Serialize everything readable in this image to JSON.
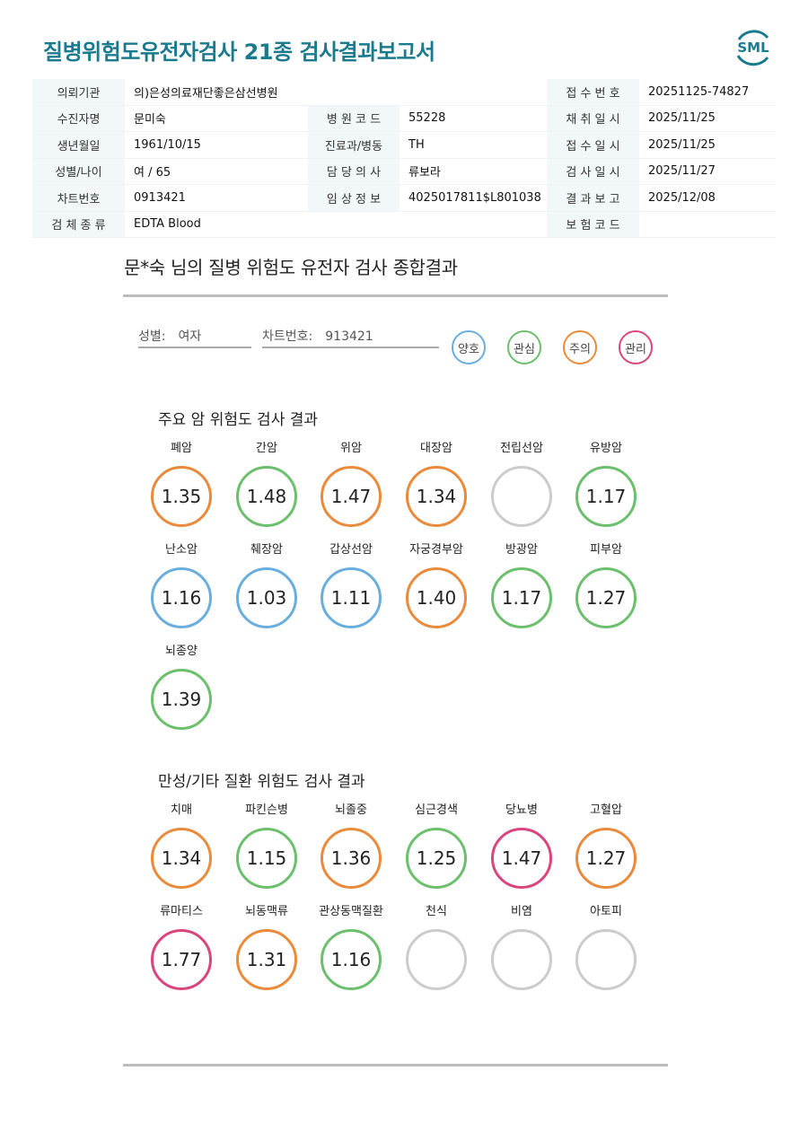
{
  "title": "질병위험도유전자검사 21종 검사결과보고서",
  "logo_text": "SML",
  "colors": {
    "good": "#6aaede",
    "interest": "#6cbf6c",
    "caution": "#ea8a3b",
    "manage": "#d9457e",
    "none": "#cccccc",
    "brand": "#1a7a8e"
  },
  "info": {
    "institution_label": "의뢰기관",
    "institution": "의)은성의료재단좋은삼선병원",
    "reception_no_label": "접 수 번 호",
    "reception_no": "20251125-74827",
    "patient_label": "수진자명",
    "patient": "문미숙",
    "hospital_code_label": "병 원 코 드",
    "hospital_code": "55228",
    "collection_date_label": "채 취 일 시",
    "collection_date": "2025/11/25",
    "dob_label": "생년월일",
    "dob": "1961/10/15",
    "dept_label": "진료과/병동",
    "dept": "TH",
    "reception_date_label": "접 수 일 시",
    "reception_date": "2025/11/25",
    "sex_age_label": "성별/나이",
    "sex_age": "여 / 65",
    "doctor_label": "담 당 의 사",
    "doctor": "류보라",
    "test_date_label": "검 사 일 시",
    "test_date": "2025/11/27",
    "chart_no_label": "차트번호",
    "chart_no": "0913421",
    "clinical_label": "임 상 정 보",
    "clinical": "4025017811$L801038",
    "report_date_label": "결 과 보 고",
    "report_date": "2025/12/08",
    "specimen_label": "검 체 종 류",
    "specimen": "EDTA Blood",
    "insurance_label": "보 험 코 드",
    "insurance": ""
  },
  "summary": {
    "title": "문*숙 님의 질병 위험도 유전자 검사 종합결과",
    "sex_label": "성별:",
    "sex_value": "여자",
    "chart_label": "차트번호:",
    "chart_value": "913421"
  },
  "legend": [
    {
      "label": "양호",
      "level": "good"
    },
    {
      "label": "관심",
      "level": "interest"
    },
    {
      "label": "주의",
      "level": "caution"
    },
    {
      "label": "관리",
      "level": "manage"
    }
  ],
  "cancer_section": {
    "title": "주요 암 위험도 검사 결과",
    "items": [
      {
        "name": "폐암",
        "value": "1.35",
        "level": "caution"
      },
      {
        "name": "간암",
        "value": "1.48",
        "level": "interest"
      },
      {
        "name": "위암",
        "value": "1.47",
        "level": "caution"
      },
      {
        "name": "대장암",
        "value": "1.34",
        "level": "caution"
      },
      {
        "name": "전립선암",
        "value": "",
        "level": "none"
      },
      {
        "name": "유방암",
        "value": "1.17",
        "level": "interest"
      },
      {
        "name": "난소암",
        "value": "1.16",
        "level": "good"
      },
      {
        "name": "췌장암",
        "value": "1.03",
        "level": "good"
      },
      {
        "name": "갑상선암",
        "value": "1.11",
        "level": "good"
      },
      {
        "name": "자궁경부암",
        "value": "1.40",
        "level": "caution"
      },
      {
        "name": "방광암",
        "value": "1.17",
        "level": "interest"
      },
      {
        "name": "피부암",
        "value": "1.27",
        "level": "interest"
      },
      {
        "name": "뇌종양",
        "value": "1.39",
        "level": "interest"
      }
    ]
  },
  "chronic_section": {
    "title": "만성/기타 질환 위험도 검사 결과",
    "items": [
      {
        "name": "치매",
        "value": "1.34",
        "level": "caution"
      },
      {
        "name": "파킨슨병",
        "value": "1.15",
        "level": "interest"
      },
      {
        "name": "뇌졸중",
        "value": "1.36",
        "level": "caution"
      },
      {
        "name": "심근경색",
        "value": "1.25",
        "level": "interest"
      },
      {
        "name": "당뇨병",
        "value": "1.47",
        "level": "manage"
      },
      {
        "name": "고혈압",
        "value": "1.27",
        "level": "caution"
      },
      {
        "name": "류마티스",
        "value": "1.77",
        "level": "manage"
      },
      {
        "name": "뇌동맥류",
        "value": "1.31",
        "level": "caution"
      },
      {
        "name": "관상동맥질환",
        "value": "1.16",
        "level": "interest"
      },
      {
        "name": "천식",
        "value": "",
        "level": "none"
      },
      {
        "name": "비염",
        "value": "",
        "level": "none"
      },
      {
        "name": "아토피",
        "value": "",
        "level": "none"
      }
    ]
  }
}
